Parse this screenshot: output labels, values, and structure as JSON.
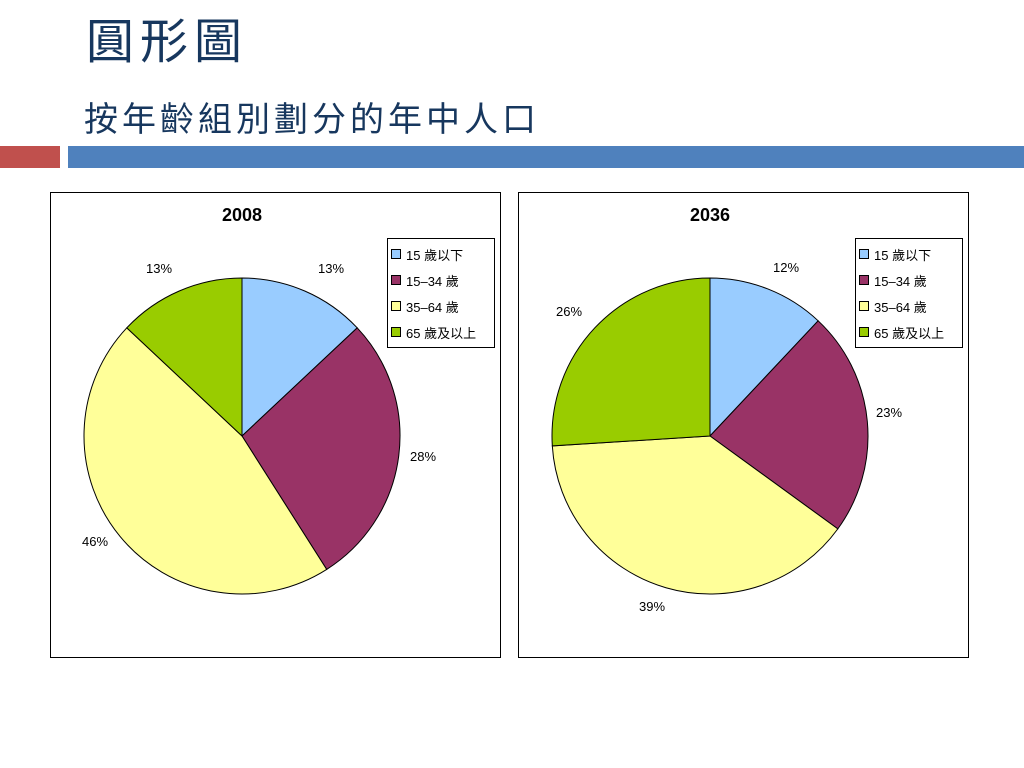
{
  "slide": {
    "title": "圓形圖",
    "subtitle": "按年齡組別劃分的年中人口"
  },
  "theme": {
    "title_color": "#17375e",
    "accent_bar_color": "#c0504d",
    "main_bar_color": "#4f81bd"
  },
  "chart_data": [
    {
      "type": "pie",
      "title": "2008",
      "categories": [
        "15 歲以下",
        "15–34 歲",
        "35–64 歲",
        "65 歲及以上"
      ],
      "values": [
        13,
        28,
        46,
        13
      ],
      "labels": [
        "13%",
        "28%",
        "46%",
        "13%"
      ],
      "colors": [
        "#99ccff",
        "#993366",
        "#ffff99",
        "#99cc00"
      ],
      "legend": "right-top"
    },
    {
      "type": "pie",
      "title": "2036",
      "categories": [
        "15 歲以下",
        "15–34 歲",
        "35–64 歲",
        "65 歲及以上"
      ],
      "values": [
        12,
        23,
        39,
        26
      ],
      "labels": [
        "12%",
        "23%",
        "39%",
        "26%"
      ],
      "colors": [
        "#99ccff",
        "#993366",
        "#ffff99",
        "#99cc00"
      ],
      "legend": "right-top"
    }
  ]
}
